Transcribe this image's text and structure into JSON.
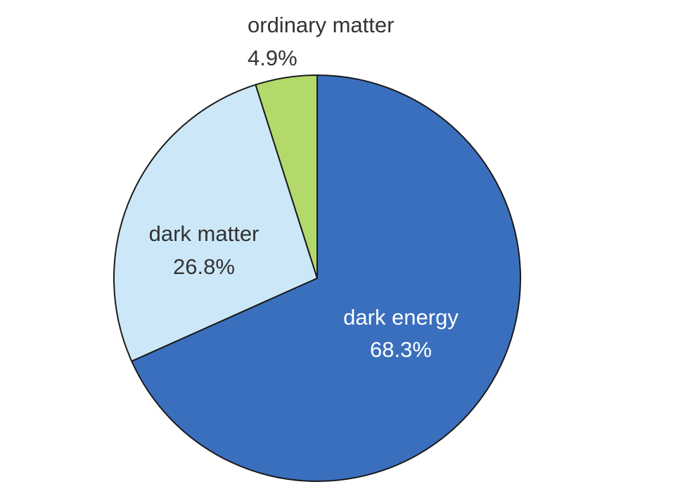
{
  "chart_data": {
    "type": "pie",
    "title": "",
    "slices": [
      {
        "name": "dark energy",
        "value": 68.3,
        "value_label": "68.3%",
        "color": "#3a6fbd",
        "label_color": "#ffffff"
      },
      {
        "name": "dark matter",
        "value": 26.8,
        "value_label": "26.8%",
        "color": "#cce8f8",
        "label_color": "#333333"
      },
      {
        "name": "ordinary matter",
        "value": 4.9,
        "value_label": "4.9%",
        "color": "#b2d96a",
        "label_color": "#333333"
      }
    ],
    "start_angle": "12 o'clock",
    "direction": "clockwise",
    "legend": "none",
    "labels": "direct"
  }
}
